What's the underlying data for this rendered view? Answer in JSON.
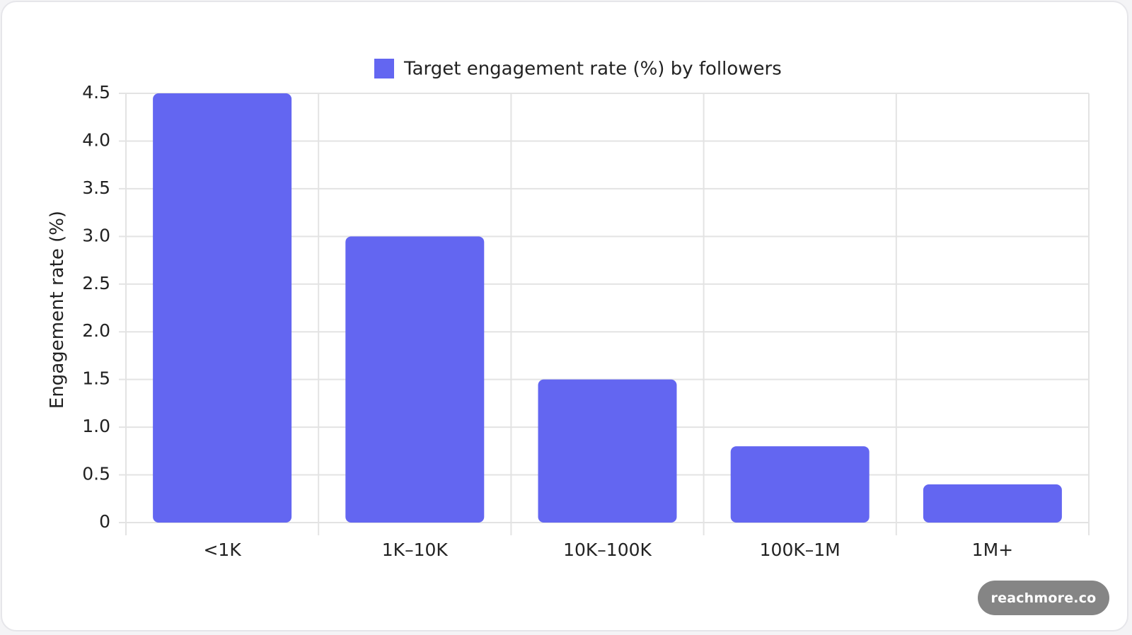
{
  "chart_data": {
    "type": "bar",
    "categories": [
      "<1K",
      "1K–10K",
      "10K–100K",
      "100K–1M",
      "1M+"
    ],
    "series": [
      {
        "name": "Target engagement rate (%) by followers",
        "values": [
          4.5,
          3.0,
          1.5,
          0.8,
          0.4
        ]
      }
    ],
    "ylabel": "Engagement rate (%)",
    "xlabel": "",
    "ylim": [
      0,
      4.5
    ],
    "yticks": [
      "0",
      "0.5",
      "1.0",
      "1.5",
      "2.0",
      "2.5",
      "3.0",
      "3.5",
      "4.0",
      "4.5"
    ],
    "grid": true,
    "legend_position": "top-center",
    "bar_color": "#6366f1"
  },
  "watermark": {
    "text": "reachmore.co"
  }
}
